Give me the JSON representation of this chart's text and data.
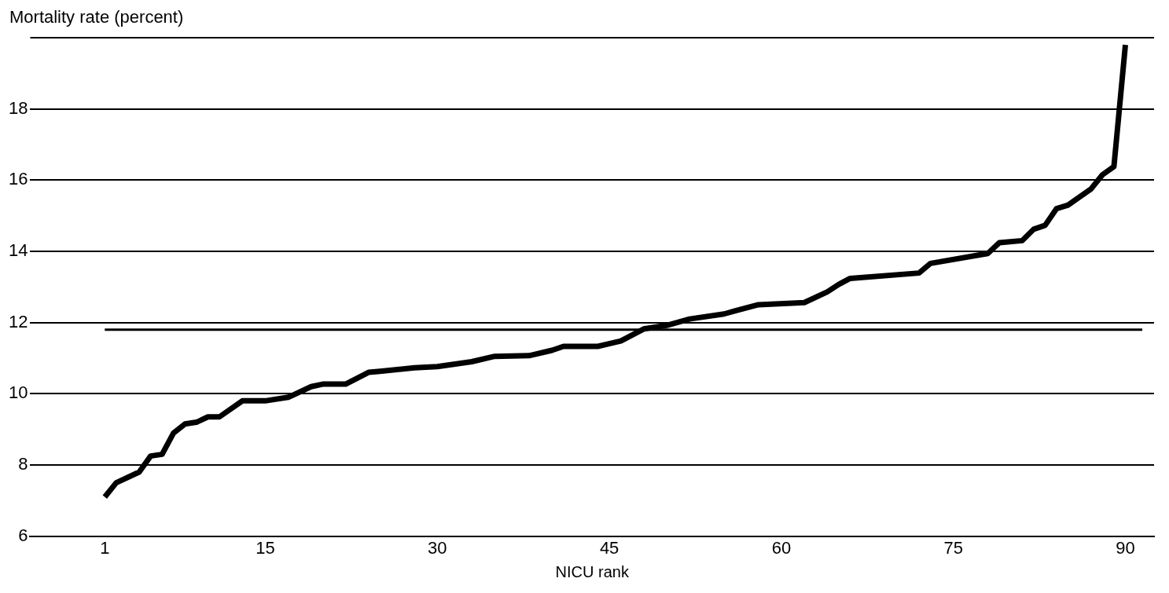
{
  "chart_data": {
    "type": "line",
    "xlabel": "NICU rank",
    "ylabel": "Mortality rate (percent)",
    "series": [
      {
        "color": "#000000",
        "x": [
          1,
          2,
          4,
          5,
          6,
          7,
          8,
          9,
          10,
          11,
          13,
          15,
          17,
          19,
          20,
          22,
          24,
          25,
          28,
          30,
          33,
          35,
          38,
          40,
          41,
          44,
          46,
          48,
          50,
          52,
          55,
          56,
          58,
          62,
          64,
          65,
          66,
          72,
          73,
          78,
          79,
          81,
          82,
          83,
          84,
          85,
          87,
          88,
          89,
          90
        ],
        "values": [
          7.1,
          7.5,
          7.8,
          8.25,
          8.3,
          8.9,
          9.15,
          9.2,
          9.35,
          9.35,
          9.8,
          9.8,
          9.9,
          10.2,
          10.27,
          10.27,
          10.6,
          10.63,
          10.73,
          10.76,
          10.9,
          11.05,
          11.07,
          11.22,
          11.33,
          11.33,
          11.48,
          11.82,
          11.92,
          12.1,
          12.24,
          12.33,
          12.5,
          12.56,
          12.86,
          13.07,
          13.24,
          13.39,
          13.66,
          13.94,
          14.24,
          14.3,
          14.62,
          14.73,
          15.2,
          15.3,
          15.75,
          16.15,
          16.38,
          19.8
        ]
      }
    ],
    "xlim": [
      -5.5,
      92.5
    ],
    "xticks": [
      1,
      15,
      30,
      45,
      60,
      75,
      90
    ],
    "ylim": [
      6,
      20
    ],
    "yticks": [
      6,
      8,
      10,
      12,
      14,
      16,
      18
    ],
    "grid": "y",
    "marker": "none",
    "line_style": "solid",
    "legend": false,
    "ref_lines": [
      {
        "axis": "y",
        "value": 11.8,
        "color": "#000000"
      }
    ]
  }
}
